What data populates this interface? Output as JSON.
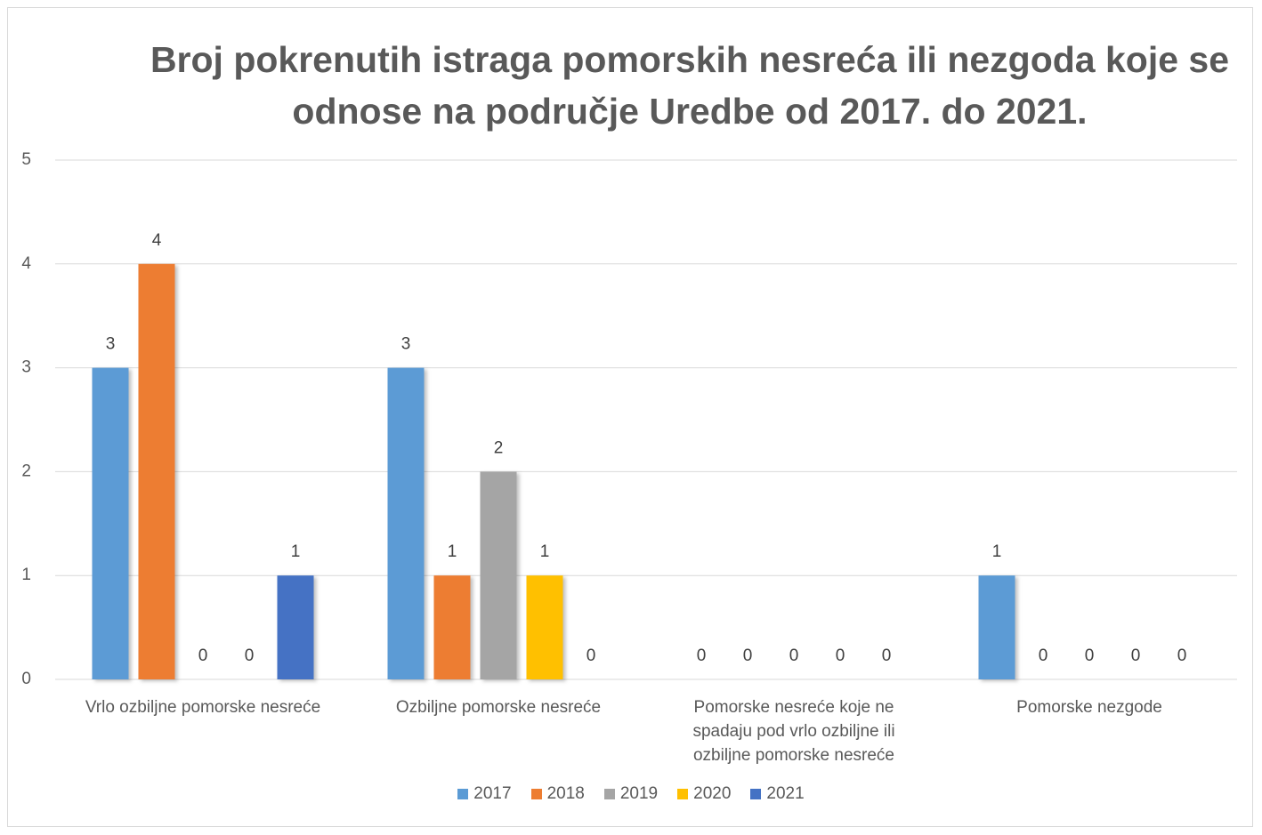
{
  "chart_data": {
    "type": "bar",
    "title": "Broj pokrenutih istraga pomorskih nesreća ili nezgoda koje se odnose na područje Uredbe od 2017. do 2021.",
    "categories": [
      "Vrlo ozbiljne pomorske nesreće",
      "Ozbiljne pomorske nesreće",
      "Pomorske nesreće koje ne spadaju pod vrlo ozbiljne ili ozbiljne pomorske nesreće",
      "Pomorske nezgode"
    ],
    "series": [
      {
        "name": "2017",
        "color": "#5b9bd5",
        "values": [
          3,
          3,
          0,
          1
        ]
      },
      {
        "name": "2018",
        "color": "#ed7d31",
        "values": [
          4,
          1,
          0,
          0
        ]
      },
      {
        "name": "2019",
        "color": "#a5a5a5",
        "values": [
          0,
          2,
          0,
          0
        ]
      },
      {
        "name": "2020",
        "color": "#ffc000",
        "values": [
          0,
          1,
          0,
          0
        ]
      },
      {
        "name": "2021",
        "color": "#4472c4",
        "values": [
          1,
          0,
          0,
          0
        ]
      }
    ],
    "ylim": [
      0,
      5
    ],
    "yticks": [
      0,
      1,
      2,
      3,
      4,
      5
    ],
    "grid": true,
    "legend": "bottom"
  }
}
